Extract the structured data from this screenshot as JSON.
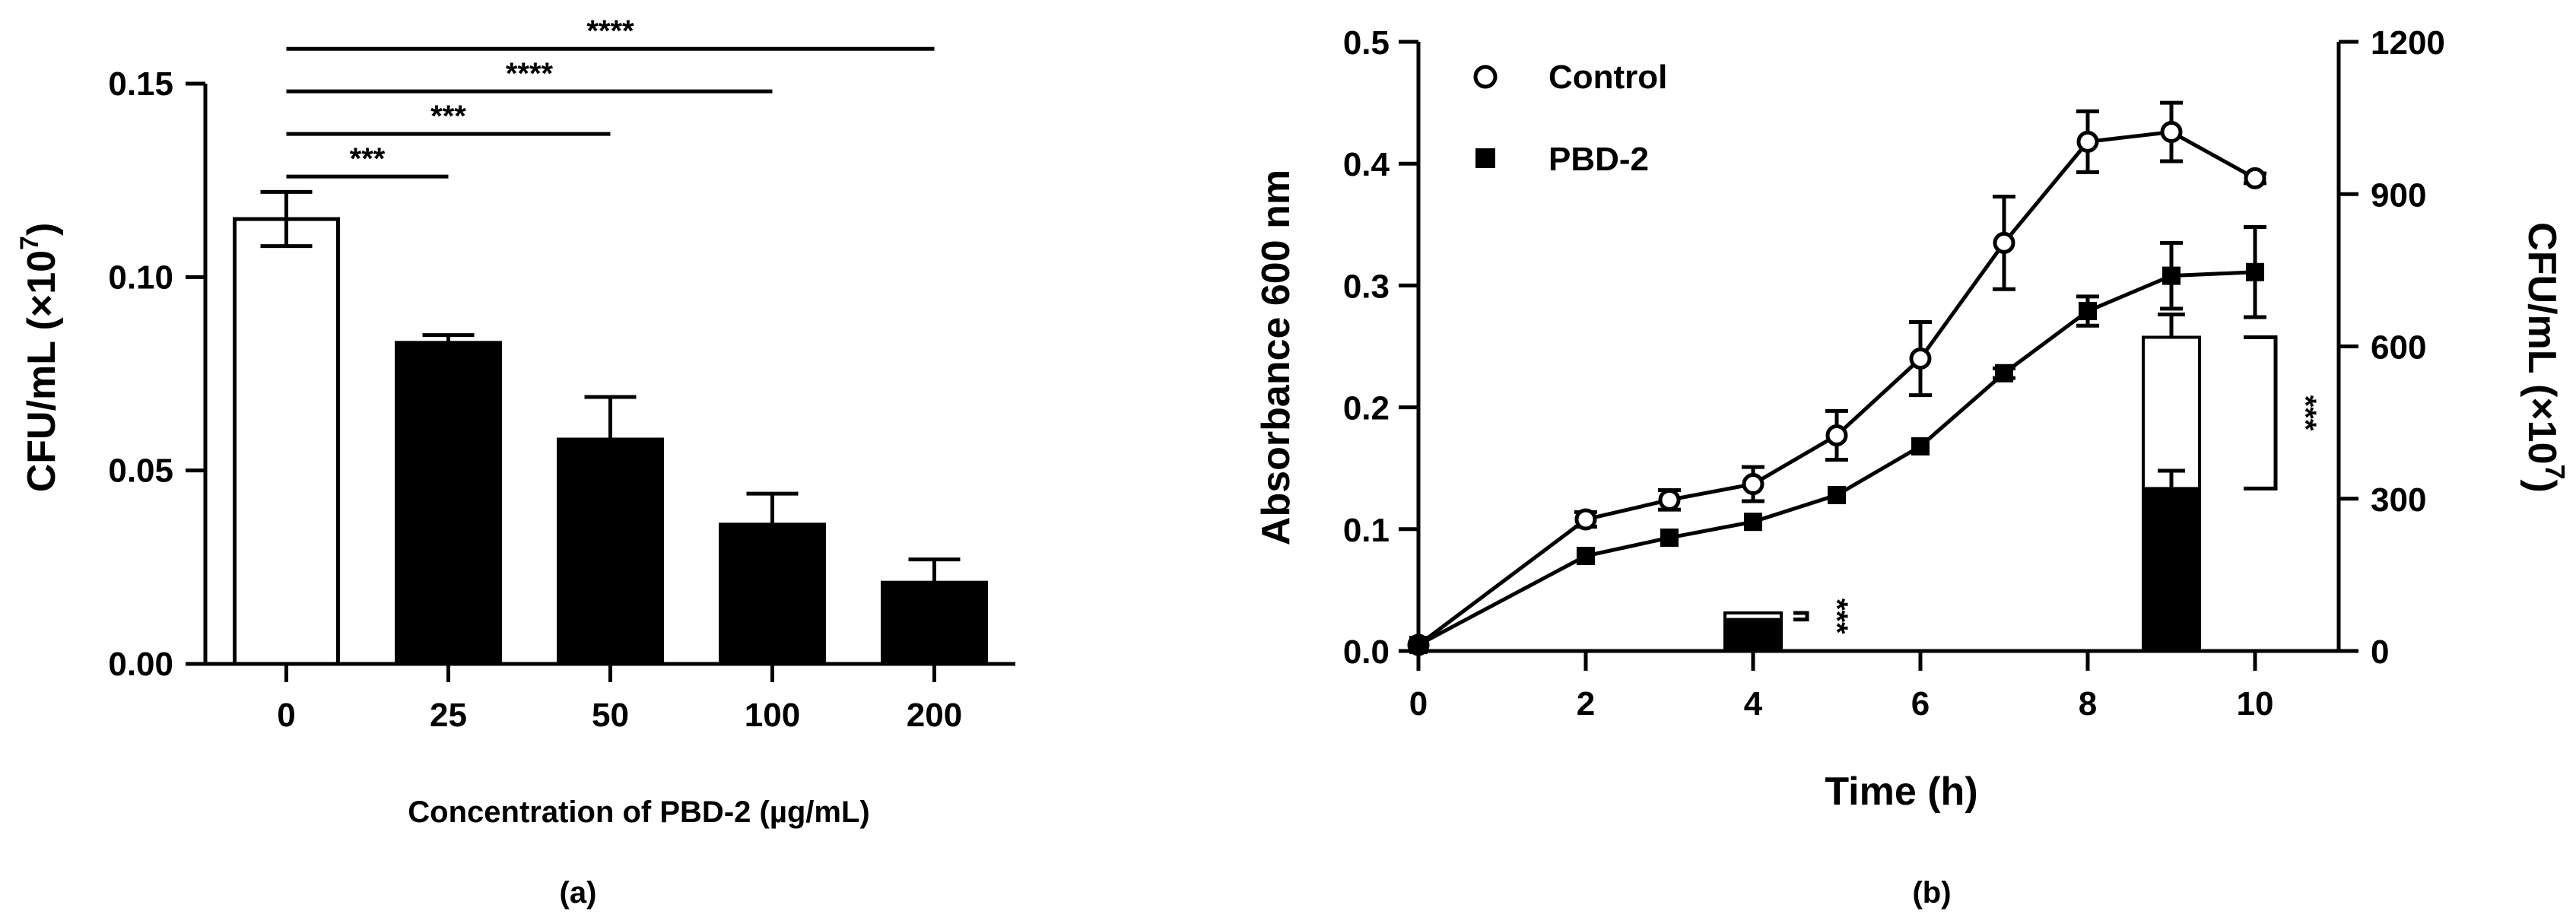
{
  "chart_data": [
    {
      "type": "bar",
      "panel_label": "(a)",
      "xlabel": "Concentration of PBD-2 (µg/mL)",
      "ylabel": "CFU/mL (×10",
      "ylabel_exp": "7",
      "ylabel_close": ")",
      "ylim": [
        0,
        0.15
      ],
      "yticks": [
        0.0,
        0.05,
        0.1,
        0.15
      ],
      "ytick_labels": [
        "0.00",
        "0.05",
        "0.10",
        "0.15"
      ],
      "categories": [
        "0",
        "25",
        "50",
        "100",
        "200"
      ],
      "values": [
        0.115,
        0.083,
        0.058,
        0.036,
        0.021
      ],
      "errors": [
        0.007,
        0.002,
        0.011,
        0.008,
        0.006
      ],
      "fills": [
        "#ffffff",
        "#000000",
        "#000000",
        "#000000",
        "#000000"
      ],
      "significance": [
        {
          "from": "0",
          "to": "25",
          "label": "***",
          "y": 0.126
        },
        {
          "from": "0",
          "to": "50",
          "label": "***",
          "y": 0.137
        },
        {
          "from": "0",
          "to": "100",
          "label": "****",
          "y": 0.148
        },
        {
          "from": "0",
          "to": "200",
          "label": "****",
          "y": 0.159
        }
      ]
    },
    {
      "type": "line",
      "panel_label": "(b)",
      "xlabel": "Time (h)",
      "ylabel": "Absorbance 600 nm",
      "ylabel_right": "CFU/mL (×10",
      "ylabel_right_exp": "7",
      "ylabel_right_close": ")",
      "xlim": [
        0,
        11
      ],
      "xticks": [
        0,
        2,
        4,
        6,
        8,
        10
      ],
      "xtick_labels": [
        "0",
        "2",
        "4",
        "6",
        "8",
        "10"
      ],
      "ylim": [
        0,
        0.5
      ],
      "yticks": [
        0.0,
        0.1,
        0.2,
        0.3,
        0.4,
        0.5
      ],
      "ytick_labels": [
        "0.0",
        "0.1",
        "0.2",
        "0.3",
        "0.4",
        "0.5"
      ],
      "ylim_right": [
        0,
        1200
      ],
      "yticks_right": [
        0,
        300,
        600,
        900,
        1200
      ],
      "ytick_labels_right": [
        "0",
        "300",
        "600",
        "900",
        "1200"
      ],
      "series": [
        {
          "name": "Control",
          "marker": "open-circle",
          "x": [
            0,
            2,
            3,
            4,
            5,
            6,
            7,
            8,
            9,
            10
          ],
          "y": [
            0.005,
            0.108,
            0.124,
            0.137,
            0.177,
            0.24,
            0.335,
            0.418,
            0.426,
            0.388
          ],
          "err": [
            0.002,
            0.006,
            0.008,
            0.014,
            0.02,
            0.03,
            0.038,
            0.025,
            0.024,
            0.004
          ]
        },
        {
          "name": "PBD-2",
          "marker": "filled-square",
          "x": [
            0,
            2,
            3,
            4,
            5,
            6,
            7,
            8,
            9,
            10
          ],
          "y": [
            0.005,
            0.078,
            0.093,
            0.106,
            0.128,
            0.168,
            0.228,
            0.279,
            0.308,
            0.311
          ],
          "err": [
            0.002,
            0.003,
            0.003,
            0.003,
            0.003,
            0.003,
            0.004,
            0.012,
            0.027,
            0.037
          ]
        }
      ],
      "cfu_bars": [
        {
          "x": 4,
          "control": 75,
          "control_err": 6,
          "pbd2": 62,
          "pbd2_err": 5,
          "label": "***"
        },
        {
          "x": 9,
          "control": 618,
          "control_err": 45,
          "pbd2": 320,
          "pbd2_err": 35,
          "label": "***"
        }
      ],
      "legend": [
        "Control",
        "PBD-2"
      ]
    }
  ]
}
